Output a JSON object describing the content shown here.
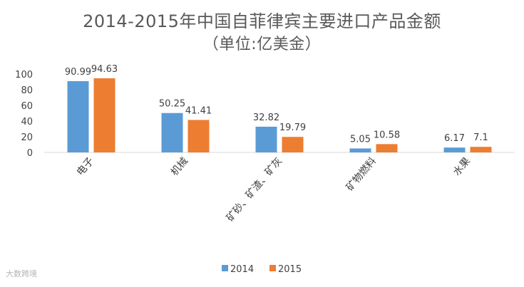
{
  "chart_data": {
    "type": "bar",
    "title": "2014-2015年中国自菲律宾主要进口产品金额",
    "subtitle": "（单位:亿美金）",
    "categories": [
      "电子",
      "机械",
      "矿砂、矿渣、矿灰",
      "矿物燃料",
      "水果"
    ],
    "series": [
      {
        "name": "2014",
        "color": "#5b9bd5",
        "values": [
          90.99,
          50.25,
          32.82,
          5.05,
          6.17
        ],
        "labels": [
          "90.99",
          "50.25",
          "32.82",
          "5.05",
          "6.17"
        ]
      },
      {
        "name": "2015",
        "color": "#ed7d31",
        "values": [
          94.63,
          41.41,
          19.79,
          10.58,
          7.1
        ],
        "labels": [
          "94.63",
          "41.41",
          "19.79",
          "10.58",
          "7.1"
        ]
      }
    ],
    "yticks": [
      "0",
      "20",
      "40",
      "60",
      "80",
      "100"
    ],
    "ylim": [
      0,
      100
    ],
    "grid": false,
    "legend_position": "bottom"
  },
  "watermark": "大数跨境"
}
